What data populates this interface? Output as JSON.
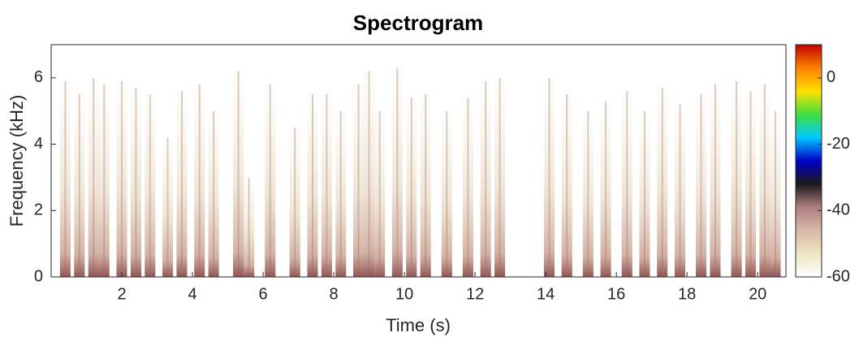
{
  "chart_data": {
    "type": "spectrogram",
    "title": "Spectrogram",
    "x_label": "Time (s)",
    "y_label": "Frequency (kHz)",
    "xlim": [
      0,
      20.8
    ],
    "xticks": [
      2,
      4,
      6,
      8,
      10,
      12,
      14,
      16,
      18,
      20
    ],
    "ylim": [
      0,
      7
    ],
    "yticks": [
      0,
      2,
      4,
      6
    ],
    "clim": [
      -60,
      10
    ],
    "cticks": [
      0,
      -20,
      -40,
      -60
    ],
    "colormap": [
      "#ffffff",
      "#ece6c0",
      "#d8b8a8",
      "#b08080",
      "#1a1a1a",
      "#0000c8",
      "#00c8ff",
      "#40e040",
      "#ffe000",
      "#ff8000",
      "#c00000"
    ],
    "color": "#a06a5a",
    "x": [
      0.4,
      0.8,
      1.2,
      1.5,
      2.0,
      2.4,
      2.8,
      3.3,
      3.7,
      4.2,
      4.6,
      5.3,
      5.6,
      6.2,
      6.9,
      7.4,
      7.8,
      8.2,
      8.7,
      9.0,
      9.3,
      9.8,
      10.2,
      10.6,
      11.2,
      11.8,
      12.3,
      12.7,
      14.1,
      14.6,
      15.2,
      15.7,
      16.3,
      16.8,
      17.3,
      17.8,
      18.4,
      18.8,
      19.4,
      19.8,
      20.2,
      20.5
    ],
    "values": [
      5.9,
      5.5,
      6.0,
      5.8,
      5.9,
      5.7,
      5.5,
      4.2,
      5.6,
      5.8,
      5.0,
      6.2,
      3.0,
      5.8,
      4.5,
      5.5,
      5.5,
      5.0,
      5.8,
      6.2,
      5.0,
      6.3,
      5.4,
      5.5,
      5.0,
      5.4,
      5.9,
      6.0,
      6.0,
      5.5,
      5.0,
      5.3,
      5.6,
      5.0,
      5.7,
      5.2,
      5.5,
      5.8,
      5.9,
      5.6,
      5.8,
      5.0
    ]
  }
}
